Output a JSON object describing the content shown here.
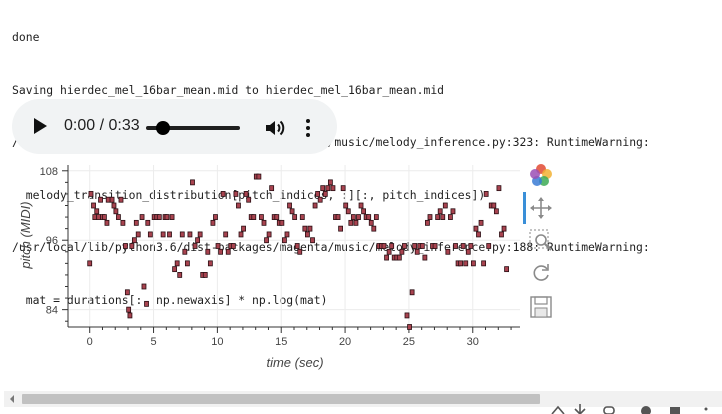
{
  "log": {
    "lines": [
      "done",
      "Saving hierdec_mel_16bar_mean.mid to hierdec_mel_16bar_mean.mid",
      "/usr/local/lib/python3.6/dist-packages/magenta/music/melody_inference.py:323: RuntimeWarning:",
      "  melody_transition_distribution[pitch_indices, :][:, pitch_indices])",
      "/usr/local/lib/python3.6/dist-packages/magenta/music/melody_inference.py:188: RuntimeWarning:",
      "  mat = durations[:, np.newaxis] * np.log(mat)"
    ]
  },
  "audio": {
    "time": "0:00 / 0:33",
    "progress": 0.0
  },
  "chart_data": {
    "type": "scatter",
    "xlabel": "time (sec)",
    "ylabel": "pitch (MIDI)",
    "xlim": [
      -1.7,
      33.7
    ],
    "ylim": [
      81,
      109
    ],
    "xticks": [
      0,
      5,
      10,
      15,
      20,
      25,
      30
    ],
    "yticks": [
      84,
      96,
      108
    ],
    "grid": true,
    "note_color": "#a8434f",
    "points": [
      [
        0.0,
        92
      ],
      [
        0.1,
        104
      ],
      [
        0.3,
        102
      ],
      [
        0.4,
        100
      ],
      [
        0.55,
        101
      ],
      [
        0.7,
        100
      ],
      [
        0.85,
        103
      ],
      [
        1.0,
        100
      ],
      [
        1.15,
        100
      ],
      [
        1.35,
        99
      ],
      [
        1.45,
        103
      ],
      [
        1.75,
        103
      ],
      [
        1.9,
        102
      ],
      [
        2.05,
        101
      ],
      [
        2.25,
        100
      ],
      [
        2.45,
        103
      ],
      [
        2.6,
        99
      ],
      [
        2.8,
        95
      ],
      [
        2.95,
        87
      ],
      [
        3.05,
        84
      ],
      [
        3.15,
        83
      ],
      [
        3.3,
        95
      ],
      [
        3.5,
        96
      ],
      [
        3.65,
        99
      ],
      [
        3.8,
        97
      ],
      [
        4.1,
        100
      ],
      [
        4.25,
        88
      ],
      [
        4.45,
        85
      ],
      [
        4.55,
        99
      ],
      [
        4.75,
        97
      ],
      [
        5.05,
        100
      ],
      [
        5.25,
        100
      ],
      [
        5.45,
        100
      ],
      [
        5.75,
        97
      ],
      [
        5.9,
        100
      ],
      [
        6.05,
        100
      ],
      [
        6.25,
        97
      ],
      [
        6.45,
        100
      ],
      [
        6.65,
        91
      ],
      [
        6.85,
        92
      ],
      [
        7.05,
        90
      ],
      [
        7.25,
        97
      ],
      [
        7.45,
        94
      ],
      [
        7.65,
        92
      ],
      [
        7.85,
        97
      ],
      [
        8.05,
        106
      ],
      [
        8.25,
        95
      ],
      [
        8.45,
        96
      ],
      [
        8.65,
        97
      ],
      [
        8.85,
        90
      ],
      [
        9.05,
        90
      ],
      [
        9.25,
        94
      ],
      [
        9.45,
        92
      ],
      [
        9.65,
        99
      ],
      [
        9.85,
        100
      ],
      [
        10.05,
        95
      ],
      [
        10.25,
        94
      ],
      [
        10.45,
        104
      ],
      [
        10.65,
        97
      ],
      [
        10.85,
        94
      ],
      [
        11.05,
        95
      ],
      [
        11.25,
        95
      ],
      [
        11.45,
        104
      ],
      [
        11.65,
        102
      ],
      [
        11.85,
        97
      ],
      [
        12.05,
        98
      ],
      [
        12.25,
        104
      ],
      [
        12.45,
        103
      ],
      [
        12.65,
        100
      ],
      [
        12.85,
        100
      ],
      [
        13.05,
        107
      ],
      [
        13.25,
        107
      ],
      [
        13.45,
        100
      ],
      [
        13.65,
        99
      ],
      [
        13.85,
        96
      ],
      [
        14.05,
        97
      ],
      [
        14.25,
        105
      ],
      [
        14.45,
        100
      ],
      [
        14.65,
        100
      ],
      [
        14.85,
        99
      ],
      [
        15.05,
        99
      ],
      [
        15.25,
        96
      ],
      [
        15.45,
        97
      ],
      [
        15.65,
        102
      ],
      [
        15.85,
        101
      ],
      [
        16.05,
        100
      ],
      [
        16.25,
        95
      ],
      [
        16.45,
        94
      ],
      [
        16.65,
        100
      ],
      [
        16.85,
        98
      ],
      [
        17.05,
        97
      ],
      [
        17.25,
        98
      ],
      [
        17.45,
        96
      ],
      [
        17.65,
        102
      ],
      [
        17.85,
        104
      ],
      [
        18.05,
        103
      ],
      [
        18.25,
        105
      ],
      [
        18.45,
        104
      ],
      [
        18.65,
        105
      ],
      [
        18.85,
        106
      ],
      [
        19.05,
        105
      ],
      [
        19.25,
        100
      ],
      [
        19.45,
        100
      ],
      [
        19.65,
        98
      ],
      [
        19.85,
        105
      ],
      [
        20.05,
        102
      ],
      [
        20.25,
        101
      ],
      [
        20.45,
        99
      ],
      [
        20.65,
        100
      ],
      [
        20.85,
        99
      ],
      [
        21.05,
        100
      ],
      [
        21.25,
        102
      ],
      [
        21.45,
        101
      ],
      [
        21.65,
        100
      ],
      [
        21.85,
        100
      ],
      [
        22.05,
        99
      ],
      [
        22.25,
        98
      ],
      [
        22.45,
        100
      ],
      [
        22.65,
        95
      ],
      [
        22.85,
        95
      ],
      [
        23.05,
        95
      ],
      [
        23.25,
        93
      ],
      [
        23.45,
        94
      ],
      [
        23.65,
        95
      ],
      [
        23.85,
        93
      ],
      [
        24.05,
        93
      ],
      [
        24.25,
        93
      ],
      [
        24.45,
        94
      ],
      [
        24.65,
        95
      ],
      [
        24.85,
        83
      ],
      [
        25.05,
        81
      ],
      [
        25.25,
        87
      ],
      [
        25.45,
        95
      ],
      [
        25.65,
        94
      ],
      [
        25.85,
        95
      ],
      [
        26.05,
        95
      ],
      [
        26.25,
        93
      ],
      [
        26.45,
        99
      ],
      [
        26.65,
        100
      ],
      [
        26.85,
        95
      ],
      [
        27.05,
        95
      ],
      [
        27.25,
        100
      ],
      [
        27.45,
        101
      ],
      [
        27.65,
        100
      ],
      [
        27.85,
        102
      ],
      [
        28.05,
        94
      ],
      [
        28.25,
        100
      ],
      [
        28.45,
        101
      ],
      [
        28.65,
        95
      ],
      [
        28.85,
        92
      ],
      [
        29.05,
        92
      ],
      [
        29.25,
        95
      ],
      [
        29.45,
        92
      ],
      [
        29.65,
        94
      ],
      [
        29.85,
        95
      ],
      [
        30.05,
        92
      ],
      [
        30.25,
        98
      ],
      [
        30.45,
        97
      ],
      [
        30.65,
        99
      ],
      [
        30.85,
        92
      ],
      [
        31.05,
        104
      ],
      [
        31.25,
        95
      ],
      [
        31.45,
        102
      ],
      [
        31.65,
        102
      ],
      [
        31.85,
        101
      ],
      [
        32.05,
        105
      ],
      [
        32.25,
        97
      ],
      [
        32.45,
        98
      ],
      [
        32.65,
        91
      ]
    ]
  },
  "toolbar": {
    "icons": [
      "bokeh-logo-icon",
      "pan-icon",
      "box-zoom-icon",
      "reset-icon",
      "save-icon"
    ]
  }
}
